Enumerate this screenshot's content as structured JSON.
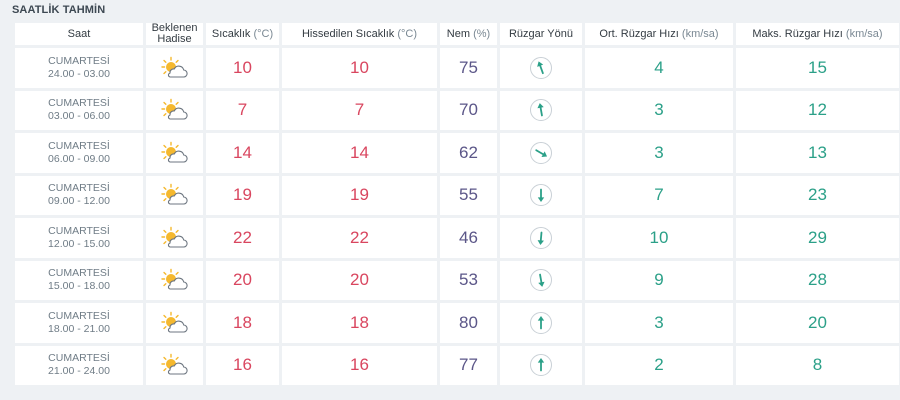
{
  "section_title": "SAATLİK TAHMİN",
  "headers": {
    "time": "Saat",
    "event_line1": "Beklenen",
    "event_line2": "Hadise",
    "temp": "Sıcaklık",
    "temp_unit": "(°C)",
    "feels": "Hissedilen Sıcaklık",
    "feels_unit": "(°C)",
    "humidity": "Nem",
    "humidity_unit": "(%)",
    "wind_dir": "Rüzgar Yönü",
    "avg_wind": "Ort. Rüzgar Hızı",
    "avg_wind_unit": "(km/sa)",
    "max_wind": "Maks. Rüzgar Hızı",
    "max_wind_unit": "(km/sa)"
  },
  "rows": [
    {
      "day": "CUMARTESİ",
      "time": "24.00 - 03.00",
      "icon": "partly-cloudy-icon",
      "temp": "10",
      "feels": "10",
      "humidity": "75",
      "wind_dir_icon": "wind-arrow-icon",
      "wind_dir_deg": 340,
      "avg_wind": "4",
      "max_wind": "15"
    },
    {
      "day": "CUMARTESİ",
      "time": "03.00 - 06.00",
      "icon": "partly-cloudy-icon",
      "temp": "7",
      "feels": "7",
      "humidity": "70",
      "wind_dir_icon": "wind-arrow-icon",
      "wind_dir_deg": 350,
      "avg_wind": "3",
      "max_wind": "12"
    },
    {
      "day": "CUMARTESİ",
      "time": "06.00 - 09.00",
      "icon": "partly-cloudy-icon",
      "temp": "14",
      "feels": "14",
      "humidity": "62",
      "wind_dir_icon": "wind-arrow-icon",
      "wind_dir_deg": 120,
      "avg_wind": "3",
      "max_wind": "13"
    },
    {
      "day": "CUMARTESİ",
      "time": "09.00 - 12.00",
      "icon": "partly-cloudy-icon",
      "temp": "19",
      "feels": "19",
      "humidity": "55",
      "wind_dir_icon": "wind-arrow-icon",
      "wind_dir_deg": 180,
      "avg_wind": "7",
      "max_wind": "23"
    },
    {
      "day": "CUMARTESİ",
      "time": "12.00 - 15.00",
      "icon": "partly-cloudy-icon",
      "temp": "22",
      "feels": "22",
      "humidity": "46",
      "wind_dir_icon": "wind-arrow-icon",
      "wind_dir_deg": 185,
      "avg_wind": "10",
      "max_wind": "29"
    },
    {
      "day": "CUMARTESİ",
      "time": "15.00 - 18.00",
      "icon": "partly-cloudy-icon",
      "temp": "20",
      "feels": "20",
      "humidity": "53",
      "wind_dir_icon": "wind-arrow-icon",
      "wind_dir_deg": 170,
      "avg_wind": "9",
      "max_wind": "28"
    },
    {
      "day": "CUMARTESİ",
      "time": "18.00 - 21.00",
      "icon": "partly-cloudy-icon",
      "temp": "18",
      "feels": "18",
      "humidity": "80",
      "wind_dir_icon": "wind-arrow-icon",
      "wind_dir_deg": 0,
      "avg_wind": "3",
      "max_wind": "20"
    },
    {
      "day": "CUMARTESİ",
      "time": "21.00 - 24.00",
      "icon": "partly-cloudy-icon",
      "temp": "16",
      "feels": "16",
      "humidity": "77",
      "wind_dir_icon": "wind-arrow-icon",
      "wind_dir_deg": 0,
      "avg_wind": "2",
      "max_wind": "8"
    }
  ],
  "colors": {
    "temp": "#d9465f",
    "humidity": "#5b5688",
    "wind": "#2ba088",
    "sun": "#f5b82e",
    "cloud_stroke": "#6d7680"
  }
}
